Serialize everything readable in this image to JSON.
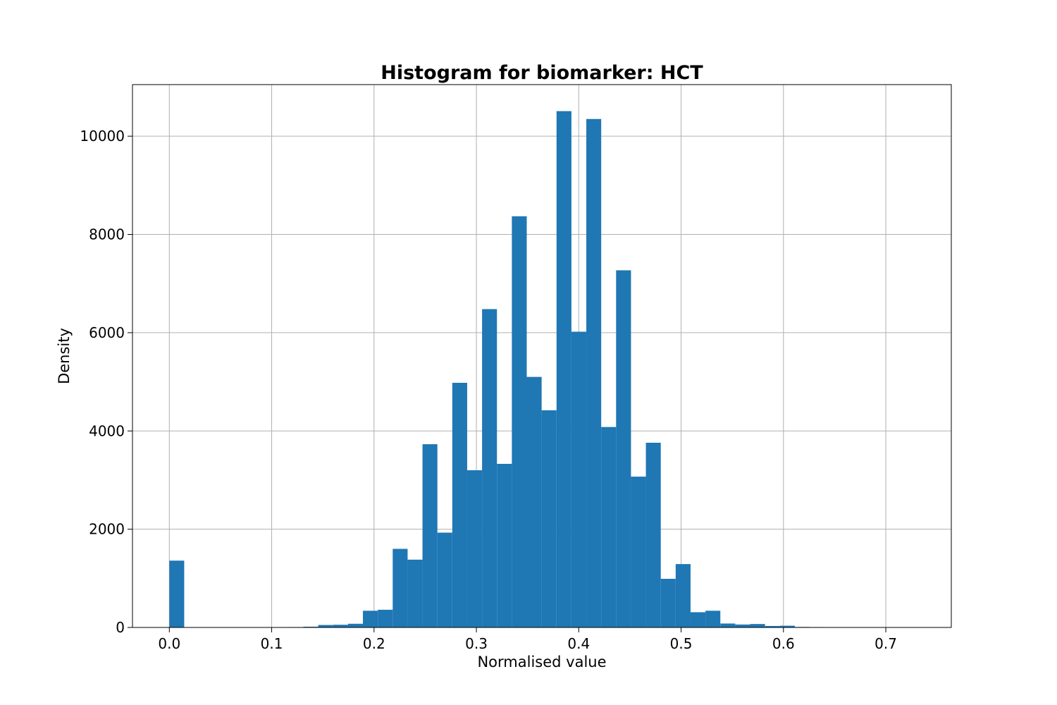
{
  "chart_data": {
    "type": "bar",
    "title": "Histogram for biomarker: HCT",
    "xlabel": "Normalised value",
    "ylabel": "Density",
    "xlim": [
      -0.036,
      0.764
    ],
    "ylim": [
      0,
      11050
    ],
    "grid": true,
    "bar_color": "#1f77b4",
    "bin_width": 0.01455,
    "xticks": [
      0.0,
      0.1,
      0.2,
      0.3,
      0.4,
      0.5,
      0.6,
      0.7
    ],
    "xtick_labels": [
      "0.0",
      "0.1",
      "0.2",
      "0.3",
      "0.4",
      "0.5",
      "0.6",
      "0.7"
    ],
    "yticks": [
      0,
      2000,
      4000,
      6000,
      8000,
      10000
    ],
    "ytick_labels": [
      "0",
      "2000",
      "4000",
      "6000",
      "8000",
      "10000"
    ],
    "bins": [
      {
        "x": 0.0,
        "value": 1360
      },
      {
        "x": 0.1164,
        "value": 8
      },
      {
        "x": 0.13095,
        "value": 15
      },
      {
        "x": 0.1455,
        "value": 50
      },
      {
        "x": 0.16005,
        "value": 55
      },
      {
        "x": 0.1746,
        "value": 75
      },
      {
        "x": 0.18915,
        "value": 340
      },
      {
        "x": 0.2037,
        "value": 360
      },
      {
        "x": 0.21825,
        "value": 1600
      },
      {
        "x": 0.2328,
        "value": 1380
      },
      {
        "x": 0.24735,
        "value": 3730
      },
      {
        "x": 0.2619,
        "value": 1930
      },
      {
        "x": 0.27645,
        "value": 4980
      },
      {
        "x": 0.291,
        "value": 3200
      },
      {
        "x": 0.30555,
        "value": 6480
      },
      {
        "x": 0.3201,
        "value": 3330
      },
      {
        "x": 0.33465,
        "value": 8370
      },
      {
        "x": 0.3492,
        "value": 5100
      },
      {
        "x": 0.36375,
        "value": 4420
      },
      {
        "x": 0.3783,
        "value": 10510
      },
      {
        "x": 0.39285,
        "value": 6020
      },
      {
        "x": 0.4074,
        "value": 10350
      },
      {
        "x": 0.42195,
        "value": 4080
      },
      {
        "x": 0.4365,
        "value": 7270
      },
      {
        "x": 0.45105,
        "value": 3070
      },
      {
        "x": 0.4656,
        "value": 3760
      },
      {
        "x": 0.48015,
        "value": 990
      },
      {
        "x": 0.4947,
        "value": 1290
      },
      {
        "x": 0.50925,
        "value": 310
      },
      {
        "x": 0.5238,
        "value": 340
      },
      {
        "x": 0.53835,
        "value": 80
      },
      {
        "x": 0.5529,
        "value": 60
      },
      {
        "x": 0.56745,
        "value": 70
      },
      {
        "x": 0.582,
        "value": 30
      },
      {
        "x": 0.59655,
        "value": 35
      },
      {
        "x": 0.6111,
        "value": 10
      },
      {
        "x": 0.62565,
        "value": 8
      }
    ]
  }
}
